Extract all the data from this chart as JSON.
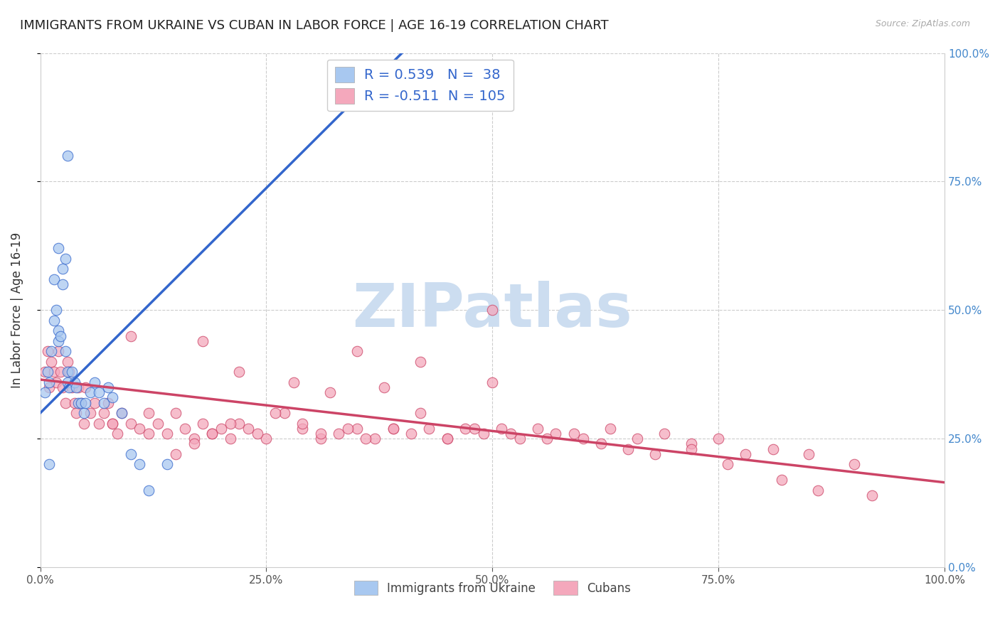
{
  "title": "IMMIGRANTS FROM UKRAINE VS CUBAN IN LABOR FORCE | AGE 16-19 CORRELATION CHART",
  "source": "Source: ZipAtlas.com",
  "ylabel": "In Labor Force | Age 16-19",
  "xlim": [
    0.0,
    1.0
  ],
  "ylim": [
    0.0,
    1.0
  ],
  "tick_labels": [
    "0.0%",
    "25.0%",
    "50.0%",
    "75.0%",
    "100.0%"
  ],
  "ukraine_color": "#a8c8f0",
  "cuban_color": "#f4a8bc",
  "ukraine_line_color": "#3366cc",
  "cuban_line_color": "#cc4466",
  "ukraine_R": 0.539,
  "ukraine_N": 38,
  "cuban_R": -0.511,
  "cuban_N": 105,
  "legend_color": "#3366cc",
  "background_color": "#ffffff",
  "grid_color": "#cccccc",
  "title_fontsize": 13,
  "axis_label_fontsize": 12,
  "tick_fontsize": 11,
  "watermark_text": "ZIPatlas",
  "watermark_color": "#ccddf0",
  "ukraine_trend_x0": 0.0,
  "ukraine_trend_y0": 0.3,
  "ukraine_trend_x1": 0.4,
  "ukraine_trend_y1": 1.0,
  "cuban_trend_x0": 0.0,
  "cuban_trend_y0": 0.365,
  "cuban_trend_x1": 1.0,
  "cuban_trend_y1": 0.165,
  "ukraine_dots_x": [
    0.005,
    0.008,
    0.01,
    0.012,
    0.015,
    0.015,
    0.018,
    0.02,
    0.02,
    0.022,
    0.025,
    0.025,
    0.028,
    0.028,
    0.03,
    0.03,
    0.032,
    0.035,
    0.038,
    0.04,
    0.042,
    0.045,
    0.048,
    0.05,
    0.055,
    0.06,
    0.065,
    0.07,
    0.075,
    0.08,
    0.09,
    0.1,
    0.11,
    0.12,
    0.14,
    0.01,
    0.02,
    0.03
  ],
  "ukraine_dots_y": [
    0.34,
    0.38,
    0.36,
    0.42,
    0.48,
    0.56,
    0.5,
    0.44,
    0.46,
    0.45,
    0.55,
    0.58,
    0.42,
    0.6,
    0.38,
    0.36,
    0.35,
    0.38,
    0.36,
    0.35,
    0.32,
    0.32,
    0.3,
    0.32,
    0.34,
    0.36,
    0.34,
    0.32,
    0.35,
    0.33,
    0.3,
    0.22,
    0.2,
    0.15,
    0.2,
    0.2,
    0.62,
    0.8
  ],
  "cuban_dots_x": [
    0.005,
    0.008,
    0.01,
    0.012,
    0.015,
    0.018,
    0.02,
    0.022,
    0.025,
    0.028,
    0.03,
    0.032,
    0.035,
    0.038,
    0.04,
    0.042,
    0.045,
    0.048,
    0.05,
    0.055,
    0.06,
    0.065,
    0.07,
    0.075,
    0.08,
    0.085,
    0.09,
    0.1,
    0.11,
    0.12,
    0.13,
    0.14,
    0.15,
    0.16,
    0.17,
    0.18,
    0.19,
    0.2,
    0.21,
    0.22,
    0.23,
    0.25,
    0.27,
    0.29,
    0.31,
    0.33,
    0.35,
    0.37,
    0.39,
    0.41,
    0.43,
    0.45,
    0.47,
    0.49,
    0.51,
    0.53,
    0.55,
    0.57,
    0.6,
    0.63,
    0.66,
    0.69,
    0.72,
    0.75,
    0.78,
    0.81,
    0.85,
    0.9,
    0.1,
    0.35,
    0.5,
    0.38,
    0.42,
    0.18,
    0.22,
    0.28,
    0.32,
    0.08,
    0.12,
    0.15,
    0.17,
    0.19,
    0.21,
    0.24,
    0.26,
    0.29,
    0.31,
    0.34,
    0.36,
    0.39,
    0.42,
    0.45,
    0.48,
    0.52,
    0.56,
    0.59,
    0.62,
    0.65,
    0.68,
    0.72,
    0.76,
    0.82,
    0.86,
    0.92,
    0.5
  ],
  "cuban_dots_y": [
    0.38,
    0.42,
    0.35,
    0.4,
    0.38,
    0.36,
    0.42,
    0.38,
    0.35,
    0.32,
    0.4,
    0.38,
    0.35,
    0.32,
    0.3,
    0.35,
    0.32,
    0.28,
    0.35,
    0.3,
    0.32,
    0.28,
    0.3,
    0.32,
    0.28,
    0.26,
    0.3,
    0.28,
    0.27,
    0.3,
    0.28,
    0.26,
    0.3,
    0.27,
    0.25,
    0.28,
    0.26,
    0.27,
    0.25,
    0.28,
    0.27,
    0.25,
    0.3,
    0.27,
    0.25,
    0.26,
    0.27,
    0.25,
    0.27,
    0.26,
    0.27,
    0.25,
    0.27,
    0.26,
    0.27,
    0.25,
    0.27,
    0.26,
    0.25,
    0.27,
    0.25,
    0.26,
    0.24,
    0.25,
    0.22,
    0.23,
    0.22,
    0.2,
    0.45,
    0.42,
    0.5,
    0.35,
    0.4,
    0.44,
    0.38,
    0.36,
    0.34,
    0.28,
    0.26,
    0.22,
    0.24,
    0.26,
    0.28,
    0.26,
    0.3,
    0.28,
    0.26,
    0.27,
    0.25,
    0.27,
    0.3,
    0.25,
    0.27,
    0.26,
    0.25,
    0.26,
    0.24,
    0.23,
    0.22,
    0.23,
    0.2,
    0.17,
    0.15,
    0.14,
    0.36
  ]
}
